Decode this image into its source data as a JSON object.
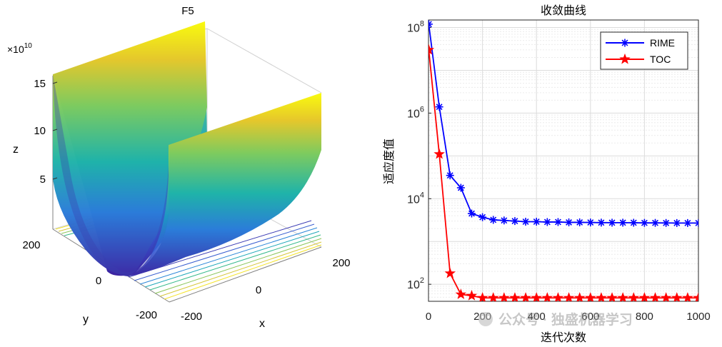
{
  "left_plot": {
    "title": "F5",
    "z_exponent_base": "×10",
    "z_exponent_power": "10",
    "z_label": "z",
    "x_label": "x",
    "y_label": "y",
    "z_ticks": [
      "15",
      "10",
      "5"
    ],
    "x_ticks": [
      "-200",
      "0",
      "200"
    ],
    "y_ticks": [
      "200",
      "0",
      "-200"
    ]
  },
  "chart_data": {
    "type": "line",
    "title": "收敛曲线",
    "xlabel": "迭代次数",
    "ylabel": "适应度值",
    "yscale": "log",
    "xlim": [
      0,
      1000
    ],
    "ylim": [
      40,
      150000000
    ],
    "x_ticks": [
      "0",
      "200",
      "400",
      "600",
      "800",
      "1000"
    ],
    "y_tick_values": [
      100,
      10000,
      1000000,
      100000000
    ],
    "y_tick_base": "10",
    "y_tick_exponents": [
      "2",
      "4",
      "6",
      "8"
    ],
    "legend_position": "top-right",
    "series": [
      {
        "name": "RIME",
        "color": "#0000ff",
        "marker": "asterisk",
        "x": [
          1,
          40,
          80,
          120,
          160,
          200,
          240,
          280,
          320,
          360,
          400,
          440,
          480,
          520,
          560,
          600,
          640,
          680,
          720,
          760,
          800,
          840,
          880,
          920,
          960,
          1000
        ],
        "values": [
          120000000,
          1400000,
          35000,
          18000,
          4500,
          3700,
          3200,
          3100,
          3000,
          2900,
          2900,
          2850,
          2850,
          2800,
          2800,
          2780,
          2760,
          2750,
          2750,
          2740,
          2720,
          2720,
          2710,
          2700,
          2700,
          2700
        ]
      },
      {
        "name": "TOC",
        "color": "#ff0000",
        "marker": "pentagram",
        "x": [
          1,
          40,
          80,
          120,
          160,
          200,
          240,
          280,
          320,
          360,
          400,
          440,
          480,
          520,
          560,
          600,
          640,
          680,
          720,
          760,
          800,
          840,
          880,
          920,
          960,
          1000
        ],
        "values": [
          30000000,
          110000,
          180,
          58,
          54,
          48,
          48,
          48,
          48,
          48,
          48,
          48,
          48,
          48,
          48,
          48,
          48,
          48,
          48,
          48,
          48,
          48,
          48,
          48,
          48,
          48
        ]
      }
    ]
  },
  "watermark": {
    "text": "公众号 · 独盛机器学习"
  }
}
